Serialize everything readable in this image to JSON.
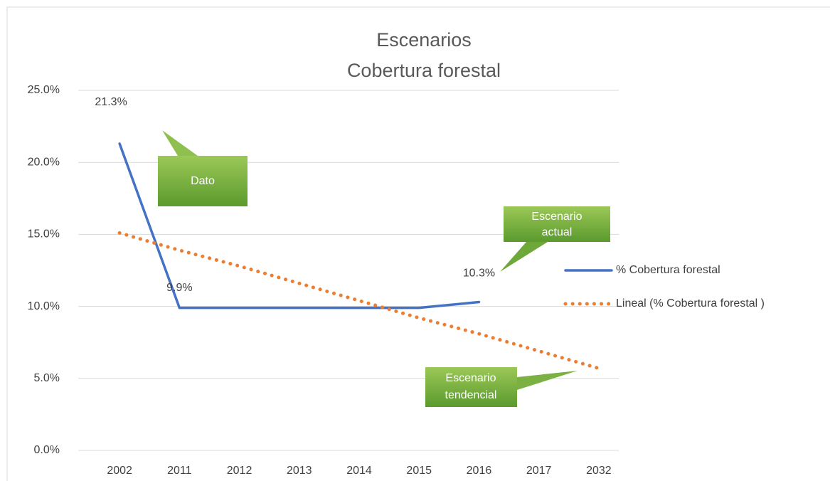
{
  "chart_data": {
    "type": "line",
    "title": [
      "Escenarios",
      "Cobertura forestal"
    ],
    "categories": [
      "2002",
      "2011",
      "2012",
      "2013",
      "2014",
      "2015",
      "2016",
      "2017",
      "2032"
    ],
    "series": [
      {
        "name": "% Cobertura forestal",
        "color": "#4472c4",
        "style": "solid",
        "values": [
          21.3,
          9.9,
          9.9,
          9.9,
          9.9,
          9.9,
          10.3,
          null,
          null
        ],
        "value_labels": [
          "21.3%",
          "9.9%",
          null,
          null,
          null,
          null,
          "10.3%",
          null,
          null
        ]
      },
      {
        "name": "Lineal (% Cobertura forestal )",
        "color": "#ed7d31",
        "style": "dotted",
        "values": [
          15.1,
          13.9,
          12.8,
          11.6,
          10.4,
          9.2,
          8.1,
          6.9,
          5.7
        ]
      }
    ],
    "ylim": [
      0,
      25
    ],
    "yticks": [
      {
        "value": 0,
        "label": "0.0%"
      },
      {
        "value": 5,
        "label": "5.0%"
      },
      {
        "value": 10,
        "label": "10.0%"
      },
      {
        "value": 15,
        "label": "15.0%"
      },
      {
        "value": 20,
        "label": "20.0%"
      },
      {
        "value": 25,
        "label": "25.0%"
      }
    ],
    "grid": true,
    "legend": "right",
    "annotations": [
      {
        "lines": [
          "Dato"
        ]
      },
      {
        "lines": [
          "Escenario",
          "actual"
        ]
      },
      {
        "lines": [
          "Escenario",
          "tendencial"
        ]
      }
    ]
  }
}
